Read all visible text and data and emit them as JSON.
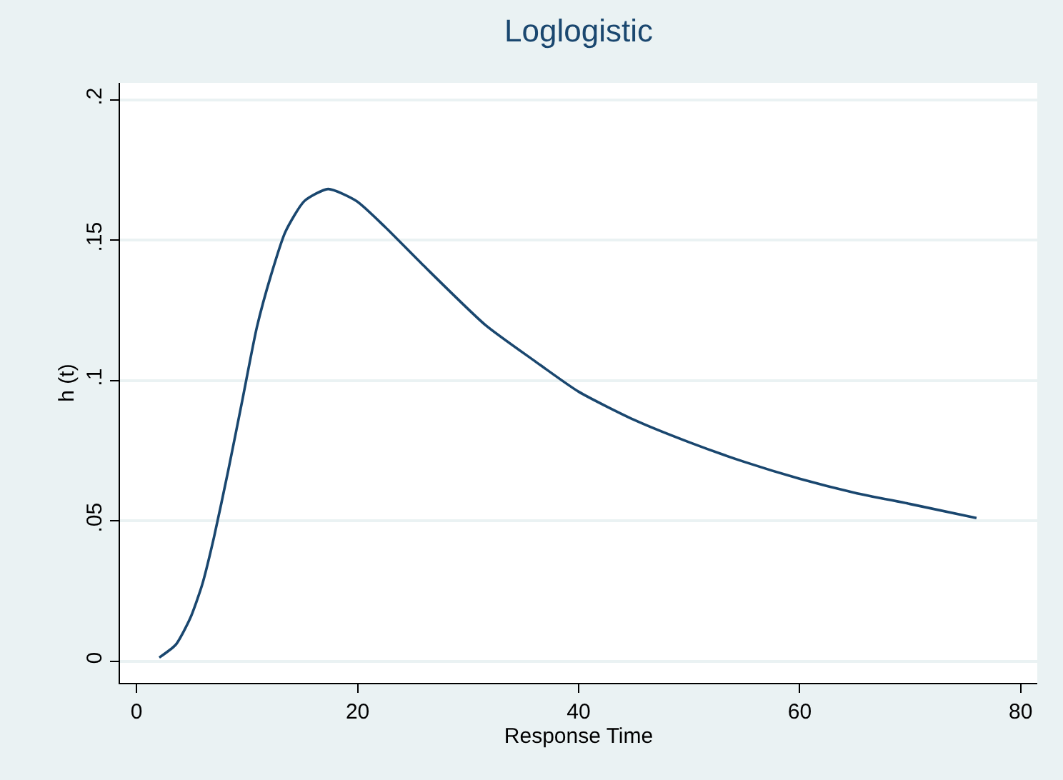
{
  "chart_data": {
    "type": "line",
    "title": "Loglogistic",
    "xlabel": "Response Time",
    "ylabel": "h (t)",
    "x": [
      2.05,
      3.55,
      4.85,
      5.93,
      7.0,
      8.29,
      9.59,
      10.88,
      12.17,
      13.46,
      15.18,
      17.33,
      19.9,
      22.5,
      25.95,
      31.55,
      36,
      40,
      45,
      50,
      55,
      60,
      65,
      70,
      76
    ],
    "series": [
      {
        "color": "#1a476f",
        "values": [
          0.0013,
          0.0059,
          0.0153,
          0.0272,
          0.0441,
          0.0679,
          0.0934,
          0.1189,
          0.1376,
          0.1529,
          0.1639,
          0.1682,
          0.1639,
          0.1546,
          0.141,
          0.1198,
          0.107,
          0.096,
          0.086,
          0.078,
          0.071,
          0.065,
          0.06,
          0.056,
          0.051
        ]
      }
    ],
    "xlim": [
      -1.5,
      81.5
    ],
    "ylim": [
      -0.0077,
      0.206
    ],
    "xticks": [
      0,
      20,
      40,
      60,
      80
    ],
    "yticks": [
      {
        "value": 0,
        "label": "0"
      },
      {
        "value": 0.05,
        "label": ".05"
      },
      {
        "value": 0.1,
        "label": ".1"
      },
      {
        "value": 0.15,
        "label": ".15"
      },
      {
        "value": 0.2,
        "label": ".2"
      }
    ],
    "grid": "y",
    "marker": "none",
    "line_style": "solid"
  }
}
